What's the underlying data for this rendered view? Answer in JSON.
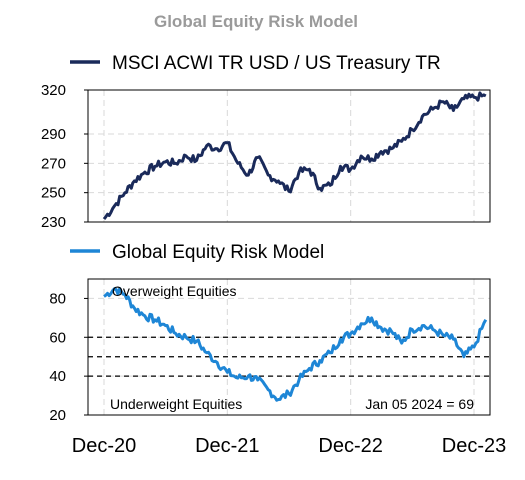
{
  "title": "Global Equity Risk Model",
  "chart_data": [
    {
      "type": "line",
      "legend": "MSCI ACWI TR USD / US Treasury TR",
      "color": "#1a2a5a",
      "ylim": [
        230,
        320
      ],
      "yticks": [
        230,
        250,
        270,
        290,
        320
      ],
      "x": [
        "2020-12-01",
        "2021-01-01",
        "2021-02-01",
        "2021-03-01",
        "2021-04-01",
        "2021-05-01",
        "2021-06-01",
        "2021-07-01",
        "2021-08-01",
        "2021-09-01",
        "2021-10-01",
        "2021-11-01",
        "2021-12-01",
        "2022-01-01",
        "2022-02-01",
        "2022-03-01",
        "2022-04-01",
        "2022-05-01",
        "2022-06-01",
        "2022-07-01",
        "2022-08-01",
        "2022-09-01",
        "2022-10-01",
        "2022-11-01",
        "2022-12-01",
        "2023-01-01",
        "2023-02-01",
        "2023-03-01",
        "2023-04-01",
        "2023-05-01",
        "2023-06-01",
        "2023-07-01",
        "2023-08-01",
        "2023-09-01",
        "2023-10-01",
        "2023-11-01",
        "2023-12-01",
        "2024-01-05"
      ],
      "values": [
        232,
        241,
        250,
        258,
        264,
        268,
        271,
        270,
        275,
        272,
        282,
        280,
        284,
        270,
        262,
        274,
        262,
        258,
        251,
        264,
        266,
        253,
        255,
        268,
        266,
        275,
        273,
        278,
        280,
        285,
        293,
        302,
        307,
        312,
        306,
        314,
        315,
        316
      ]
    },
    {
      "type": "line",
      "legend": "Global Equity Risk Model",
      "color": "#1e86d6",
      "ylim": [
        20,
        90
      ],
      "yticks": [
        20,
        40,
        60,
        80
      ],
      "thresholds": [
        40,
        50,
        60
      ],
      "annotations": {
        "top": "Overweight Equities",
        "bottom": "Underweight Equities",
        "latest": "Jan 05 2024 = 69"
      },
      "x": [
        "2020-12-01",
        "2021-01-01",
        "2021-02-01",
        "2021-03-01",
        "2021-04-01",
        "2021-05-01",
        "2021-06-01",
        "2021-07-01",
        "2021-08-01",
        "2021-09-01",
        "2021-10-01",
        "2021-11-01",
        "2021-12-01",
        "2022-01-01",
        "2022-02-01",
        "2022-03-01",
        "2022-04-01",
        "2022-05-01",
        "2022-06-01",
        "2022-07-01",
        "2022-08-01",
        "2022-09-01",
        "2022-10-01",
        "2022-11-01",
        "2022-12-01",
        "2023-01-01",
        "2023-02-01",
        "2023-03-01",
        "2023-04-01",
        "2023-05-01",
        "2023-06-01",
        "2023-07-01",
        "2023-08-01",
        "2023-09-01",
        "2023-10-01",
        "2023-11-01",
        "2023-12-01",
        "2024-01-05"
      ],
      "values": [
        81,
        85,
        82,
        75,
        71,
        69,
        66,
        62,
        60,
        58,
        52,
        47,
        42,
        39,
        40,
        38,
        33,
        28,
        31,
        38,
        44,
        48,
        52,
        59,
        62,
        67,
        70,
        65,
        63,
        57,
        64,
        66,
        64,
        61,
        59,
        50,
        55,
        69
      ]
    }
  ],
  "x_axis": {
    "ticks": [
      {
        "date": "2020-12-01",
        "label": "Dec-20"
      },
      {
        "date": "2021-12-01",
        "label": "Dec-21"
      },
      {
        "date": "2022-12-01",
        "label": "Dec-22"
      },
      {
        "date": "2023-12-01",
        "label": "Dec-23"
      }
    ]
  }
}
